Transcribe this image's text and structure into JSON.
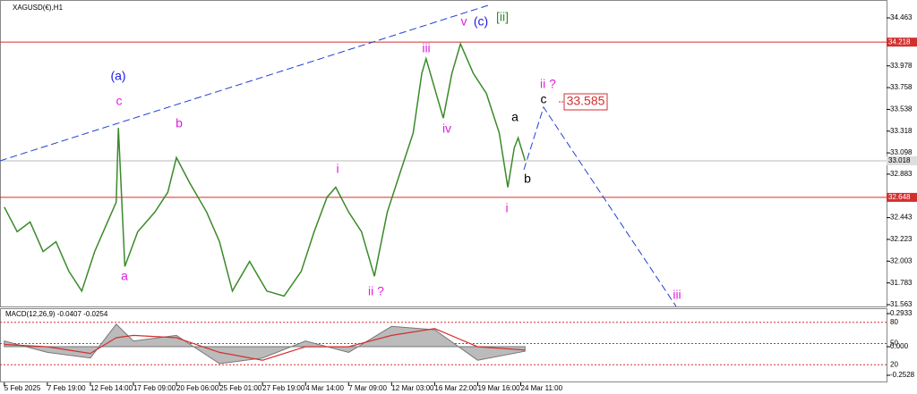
{
  "chart_data": {
    "type": "line",
    "title": "XAGUSD(€),H1",
    "x": [
      0,
      0.3,
      0.6,
      0.9,
      1.2,
      1.5,
      1.8,
      2.1,
      2.4,
      2.6,
      2.65,
      2.8,
      3.1,
      3.5,
      3.8,
      4.0,
      4.3,
      4.7,
      5.0,
      5.3,
      5.7,
      6.1,
      6.5,
      6.9,
      7.2,
      7.5,
      7.7,
      8.0,
      8.3,
      8.6,
      8.9,
      9.2,
      9.5,
      9.7,
      9.8,
      10.0,
      10.2,
      10.4,
      10.6,
      10.9,
      11.2,
      11.5,
      11.7,
      11.85,
      11.94,
      12.1
    ],
    "series": [
      {
        "name": "XAGUSD",
        "color": "#3a8a2a",
        "values": [
          32.55,
          32.3,
          32.4,
          32.1,
          32.2,
          31.9,
          31.7,
          32.1,
          32.4,
          32.6,
          33.35,
          31.95,
          32.3,
          32.5,
          32.7,
          33.05,
          32.8,
          32.5,
          32.2,
          31.7,
          32.0,
          31.7,
          31.65,
          31.9,
          32.3,
          32.65,
          32.75,
          32.5,
          32.3,
          31.85,
          32.5,
          32.9,
          33.3,
          33.9,
          34.05,
          33.75,
          33.45,
          33.9,
          34.2,
          33.9,
          33.7,
          33.3,
          32.75,
          33.15,
          33.25,
          33.02
        ]
      }
    ],
    "xlim": [
      -0.1,
      20.5
    ],
    "xticks": [
      {
        "value": 0,
        "label": "5 Feb 2025"
      },
      {
        "value": 1,
        "label": "7 Feb 19:00"
      },
      {
        "value": 2,
        "label": "12 Feb 14:00"
      },
      {
        "value": 3,
        "label": "17 Feb 09:00"
      },
      {
        "value": 4,
        "label": "20 Feb 06:00"
      },
      {
        "value": 5,
        "label": "25 Feb 01:00"
      },
      {
        "value": 6,
        "label": "27 Feb 19:00"
      },
      {
        "value": 7,
        "label": "4 Mar 14:00"
      },
      {
        "value": 8,
        "label": "7 Mar 09:00"
      },
      {
        "value": 9,
        "label": "12 Mar 03:00"
      },
      {
        "value": 10,
        "label": "16 Mar 22:00"
      },
      {
        "value": 11,
        "label": "19 Mar 16:00"
      },
      {
        "value": 12,
        "label": "24 Mar 11:00"
      }
    ],
    "ylim": [
      31.545,
      34.644
    ],
    "yticks": [
      34.463,
      33.978,
      33.758,
      33.538,
      33.318,
      33.098,
      32.883,
      32.443,
      32.223,
      {
        "value": 32.003,
        "label": "32.003"
      },
      31.783,
      31.563
    ],
    "levels": [
      {
        "value": 34.218,
        "color": "#d32f2f"
      },
      {
        "value": 32.648,
        "color": "#d32f2f"
      }
    ],
    "current_price": 33.018,
    "target_label": "33.585",
    "annotations": [
      {
        "text": "(a)",
        "color": "#1a1ae6"
      },
      {
        "text": "c",
        "color": "#e020e0"
      },
      {
        "text": "b",
        "color": "#e020e0"
      },
      {
        "text": "a",
        "color": "#e020e0"
      },
      {
        "text": "i",
        "color": "#e020e0"
      },
      {
        "text": "ii ?",
        "color": "#e020e0"
      },
      {
        "text": "iii",
        "color": "#e020e0"
      },
      {
        "text": "iv",
        "color": "#e020e0"
      },
      {
        "text": "v",
        "color": "#e020e0"
      },
      {
        "text": "(c)",
        "color": "#1a1ae6"
      },
      {
        "text": "[ii]",
        "color": "#2e8b2e"
      },
      {
        "text": "i",
        "color": "#e020e0"
      },
      {
        "text": "a",
        "color": "#000000"
      },
      {
        "text": "b",
        "color": "#000000"
      },
      {
        "text": "c",
        "color": "#000000"
      },
      {
        "text": "ii ?",
        "color": "#e020e0"
      },
      {
        "text": "iii",
        "color": "#e020e0"
      }
    ],
    "macd": {
      "title": "MACD(12,26,9) -0.0407 -0.0254",
      "x": [
        0,
        1,
        2,
        2.6,
        3,
        4,
        5,
        6,
        7,
        8,
        9,
        10,
        11,
        12.1
      ],
      "values": [
        0.05,
        -0.05,
        -0.1,
        0.2,
        0.05,
        0.1,
        -0.15,
        -0.1,
        0.05,
        -0.05,
        0.18,
        0.15,
        -0.12,
        -0.04
      ],
      "signal": [
        0.02,
        0,
        -0.06,
        0.08,
        0.1,
        0.08,
        -0.05,
        -0.12,
        0,
        0,
        0.1,
        0.16,
        0,
        -0.03
      ],
      "ylim": [
        -0.2528,
        0.2933
      ],
      "yticks": [
        {
          "value": 0.2933,
          "label": "0.2933"
        },
        {
          "value": 0,
          "label": "0.000"
        },
        {
          "value": -0.2528,
          "label": "-0.2528"
        }
      ],
      "y2lim": [
        0,
        100
      ],
      "y2ticks": [
        80,
        50,
        20
      ]
    }
  }
}
